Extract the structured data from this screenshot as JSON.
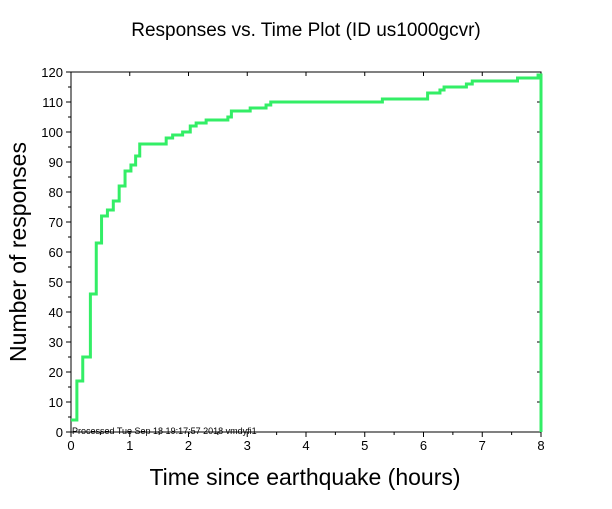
{
  "chart_data": {
    "type": "line",
    "title": "Responses vs. Time Plot (ID us1000gcvr)",
    "xlabel": "Time since earthquake (hours)",
    "ylabel": "Number of responses",
    "xlim": [
      0,
      8
    ],
    "ylim": [
      0,
      120
    ],
    "x_ticks": [
      0,
      1,
      2,
      3,
      4,
      5,
      6,
      7,
      8
    ],
    "y_ticks": [
      0,
      10,
      20,
      30,
      40,
      50,
      60,
      70,
      80,
      90,
      100,
      110,
      120
    ],
    "grid": false,
    "line_color": "#33ee66",
    "series": [
      {
        "step": true,
        "x": [
          0.0,
          0.1,
          0.1,
          0.2,
          0.2,
          0.33,
          0.33,
          0.43,
          0.43,
          0.52,
          0.52,
          0.62,
          0.62,
          0.72,
          0.72,
          0.82,
          0.82,
          0.92,
          0.92,
          1.02,
          1.02,
          1.1,
          1.1,
          1.17,
          1.17,
          1.3,
          1.3,
          1.62,
          1.62,
          1.73,
          1.73,
          1.9,
          1.9,
          2.03,
          2.03,
          2.13,
          2.13,
          2.25,
          2.25,
          2.3,
          2.3,
          2.58,
          2.58,
          2.67,
          2.67,
          2.73,
          2.73,
          3.05,
          3.05,
          3.32,
          3.32,
          3.4,
          3.4,
          3.87,
          3.87,
          5.3,
          5.3,
          6.07,
          6.07,
          6.28,
          6.28,
          6.35,
          6.35,
          6.43,
          6.43,
          6.73,
          6.73,
          6.83,
          6.83,
          7.6,
          7.6,
          7.95,
          7.95,
          8.0,
          8.0
        ],
        "y": [
          4,
          4,
          17,
          17,
          25,
          25,
          46,
          46,
          63,
          63,
          72,
          72,
          74,
          74,
          77,
          77,
          82,
          82,
          87,
          87,
          89,
          89,
          92,
          92,
          96,
          96,
          96,
          96,
          98,
          98,
          99,
          99,
          100,
          100,
          102,
          102,
          103,
          103,
          103,
          103,
          104,
          104,
          104,
          104,
          105,
          105,
          107,
          107,
          108,
          108,
          109,
          109,
          110,
          110,
          110,
          110,
          111,
          111,
          113,
          113,
          114,
          114,
          115,
          115,
          115,
          115,
          116,
          116,
          117,
          117,
          118,
          118,
          119,
          119,
          0
        ]
      }
    ],
    "annotation": "Processed Tue Sep 18 19:17:57 2018 vmdyfi1"
  }
}
